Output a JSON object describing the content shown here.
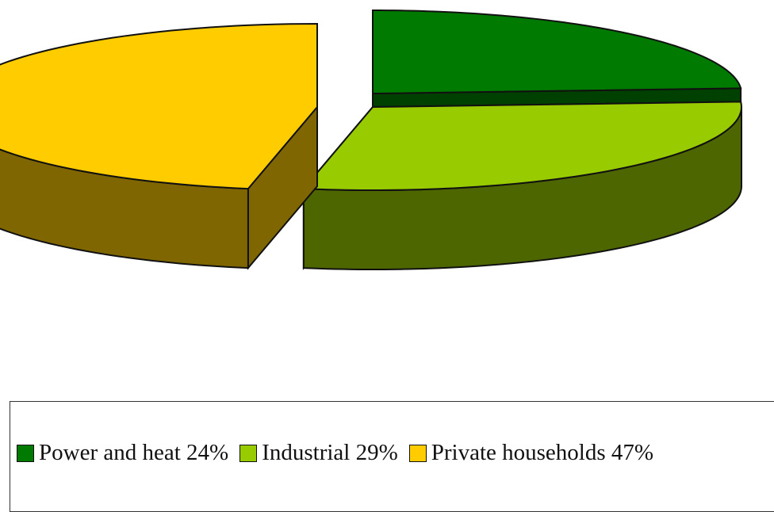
{
  "chart_data": {
    "type": "pie",
    "title": "",
    "categories": [
      "Power and heat",
      "Industrial",
      "Private households"
    ],
    "values": [
      24,
      29,
      47
    ],
    "unit": "%",
    "colors": {
      "Power and heat": "#007A00",
      "Industrial": "#99CC00",
      "Private households": "#FFCC00"
    },
    "side_colors": {
      "Power and heat": "#004000",
      "Industrial": "#4D6600",
      "Private households": "#806600"
    },
    "style": "3d-exploded-pie",
    "legend_placement": "bottom"
  },
  "legend": {
    "items": [
      {
        "label": "Power and heat 24%",
        "color": "#007A00"
      },
      {
        "label": "Industrial 29%",
        "color": "#99CC00"
      },
      {
        "label": "Private households 47%",
        "color": "#FFCC00"
      }
    ]
  }
}
